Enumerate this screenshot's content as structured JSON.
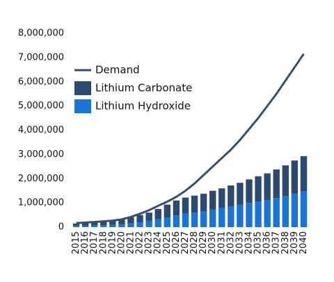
{
  "chart_data": {
    "type": "bar",
    "stacked": true,
    "categories": [
      "2015",
      "2016",
      "2017",
      "2018",
      "2019",
      "2020",
      "2021",
      "2022",
      "2023",
      "2024",
      "2025",
      "2026",
      "2027",
      "2028",
      "2029",
      "2030",
      "2031",
      "2032",
      "2033",
      "2034",
      "2035",
      "2036",
      "2037",
      "2038",
      "2039",
      "2040"
    ],
    "series": [
      {
        "name": "Demand",
        "type": "line",
        "color": "#34506e",
        "values": [
          170000,
          190000,
          210000,
          240000,
          270000,
          320000,
          420000,
          550000,
          700000,
          880000,
          1050000,
          1250000,
          1500000,
          1800000,
          2150000,
          2500000,
          2850000,
          3200000,
          3600000,
          4050000,
          4500000,
          5000000,
          5500000,
          6050000,
          6600000,
          7150000
        ]
      },
      {
        "name": "Lithium Carbonate",
        "type": "bar",
        "color": "#2c4a70",
        "values": [
          100000,
          120000,
          130000,
          140000,
          160000,
          190000,
          250000,
          300000,
          350000,
          430000,
          530000,
          620000,
          670000,
          700000,
          730000,
          780000,
          820000,
          870000,
          910000,
          970000,
          1050000,
          1100000,
          1180000,
          1270000,
          1370000,
          1450000
        ]
      },
      {
        "name": "Lithium Hydroxide",
        "type": "bar",
        "color": "#1a73d9",
        "values": [
          50000,
          60000,
          70000,
          80000,
          90000,
          110000,
          150000,
          200000,
          250000,
          320000,
          400000,
          480000,
          550000,
          600000,
          650000,
          720000,
          780000,
          850000,
          920000,
          1000000,
          1050000,
          1120000,
          1200000,
          1280000,
          1380000,
          1480000
        ]
      }
    ],
    "ylim": [
      0,
      8000000
    ],
    "yticks": [
      0,
      {
        "value": 1000000,
        "label": "1,000,000"
      },
      {
        "value": 2000000,
        "label": "2,000,000"
      },
      {
        "value": 3000000,
        "label": "3,000,000"
      },
      {
        "value": 4000000,
        "label": "4,000,000"
      },
      {
        "value": 5000000,
        "label": "5,000,000"
      },
      {
        "value": 6000000,
        "label": "6,000,000"
      },
      {
        "value": 7000000,
        "label": "7,000,000"
      },
      {
        "value": 8000000,
        "label": "8,000,000"
      }
    ],
    "legend": "upper left",
    "grid": false
  }
}
